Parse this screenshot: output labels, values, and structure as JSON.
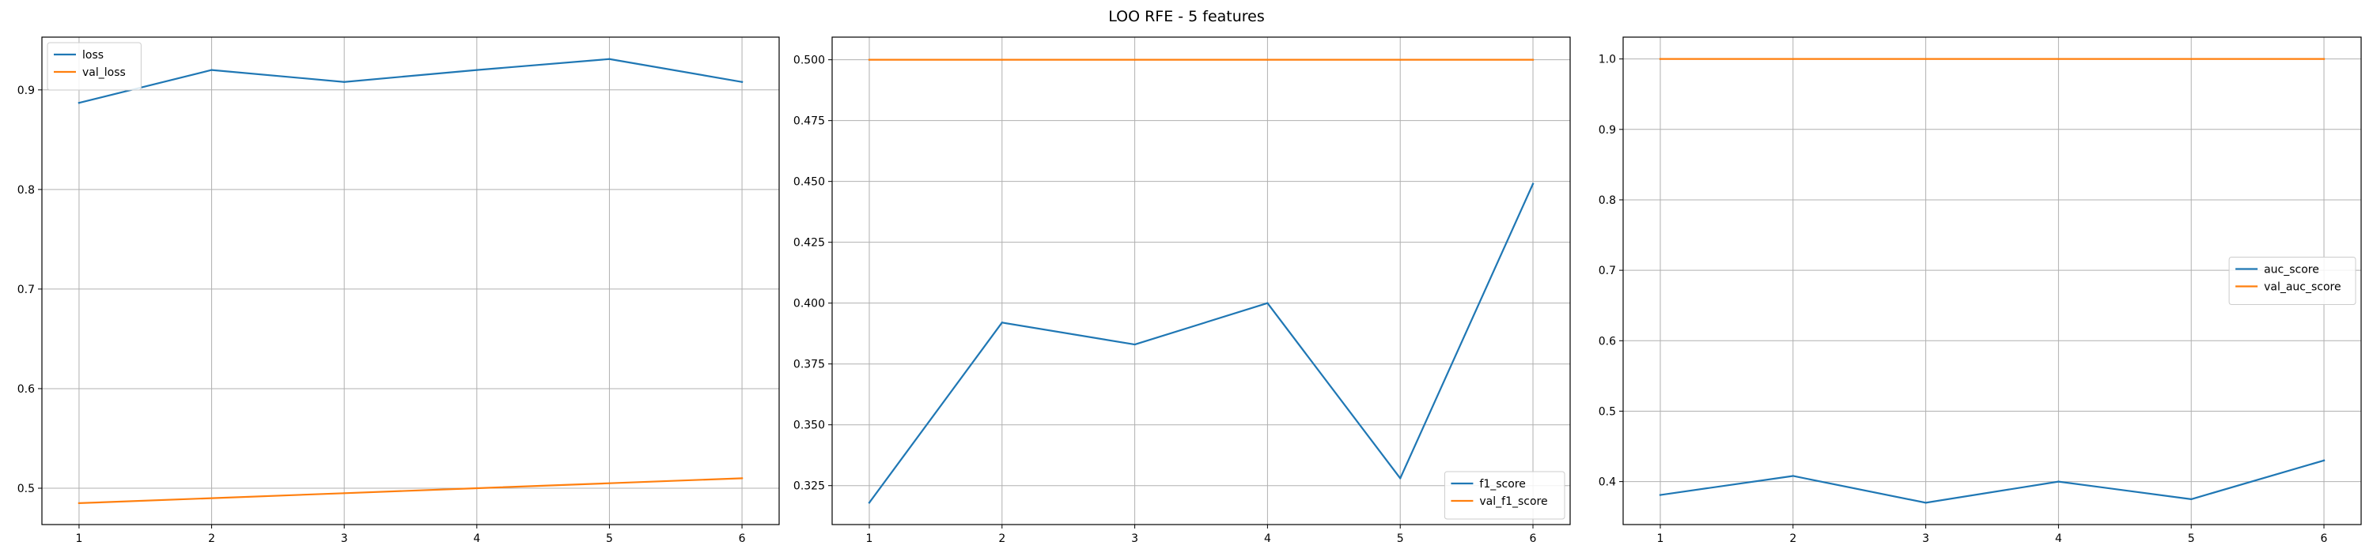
{
  "figure": {
    "title": "LOO RFE - 5 features"
  },
  "colors": {
    "blue": "#1f77b4",
    "orange": "#ff7f0e",
    "grid": "#b0b0b0"
  },
  "chart_data": [
    {
      "type": "line",
      "legend_position": "top-left",
      "grid": true,
      "xlim": [
        0.72,
        6.28
      ],
      "ylim": [
        0.4635,
        0.953
      ],
      "xticks": [
        1,
        2,
        3,
        4,
        5,
        6
      ],
      "yticks": [
        0.5,
        0.6,
        0.7,
        0.8,
        0.9
      ],
      "yticklabels": [
        "0.5",
        "0.6",
        "0.7",
        "0.8",
        "0.9"
      ],
      "x": [
        1,
        2,
        3,
        4,
        5,
        6
      ],
      "series": [
        {
          "name": "loss",
          "color": "#1f77b4",
          "values": [
            0.887,
            0.92,
            0.908,
            0.92,
            0.931,
            0.908
          ]
        },
        {
          "name": "val_loss",
          "color": "#ff7f0e",
          "values": [
            0.485,
            0.49,
            0.495,
            0.5,
            0.505,
            0.51
          ]
        }
      ]
    },
    {
      "type": "line",
      "legend_position": "bottom-right",
      "grid": true,
      "xlim": [
        0.72,
        6.28
      ],
      "ylim": [
        0.309,
        0.5093
      ],
      "xticks": [
        1,
        2,
        3,
        4,
        5,
        6
      ],
      "yticks": [
        0.325,
        0.35,
        0.375,
        0.4,
        0.425,
        0.45,
        0.475,
        0.5
      ],
      "yticklabels": [
        "0.325",
        "0.350",
        "0.375",
        "0.400",
        "0.425",
        "0.450",
        "0.475",
        "0.500"
      ],
      "x": [
        1,
        2,
        3,
        4,
        5,
        6
      ],
      "series": [
        {
          "name": "f1_score",
          "color": "#1f77b4",
          "values": [
            0.318,
            0.392,
            0.383,
            0.4,
            0.328,
            0.449
          ]
        },
        {
          "name": "val_f1_score",
          "color": "#ff7f0e",
          "values": [
            0.5,
            0.5,
            0.5,
            0.5,
            0.5,
            0.5
          ]
        }
      ]
    },
    {
      "type": "line",
      "legend_position": "center-right",
      "grid": true,
      "xlim": [
        0.72,
        6.28
      ],
      "ylim": [
        0.339,
        1.031
      ],
      "xticks": [
        1,
        2,
        3,
        4,
        5,
        6
      ],
      "yticks": [
        0.4,
        0.5,
        0.6,
        0.7,
        0.8,
        0.9,
        1.0
      ],
      "yticklabels": [
        "0.4",
        "0.5",
        "0.6",
        "0.7",
        "0.8",
        "0.9",
        "1.0"
      ],
      "x": [
        1,
        2,
        3,
        4,
        5,
        6
      ],
      "series": [
        {
          "name": "auc_score",
          "color": "#1f77b4",
          "values": [
            0.381,
            0.408,
            0.37,
            0.4,
            0.375,
            0.43
          ]
        },
        {
          "name": "val_auc_score",
          "color": "#ff7f0e",
          "values": [
            1.0,
            1.0,
            1.0,
            1.0,
            1.0,
            1.0
          ]
        }
      ]
    }
  ]
}
